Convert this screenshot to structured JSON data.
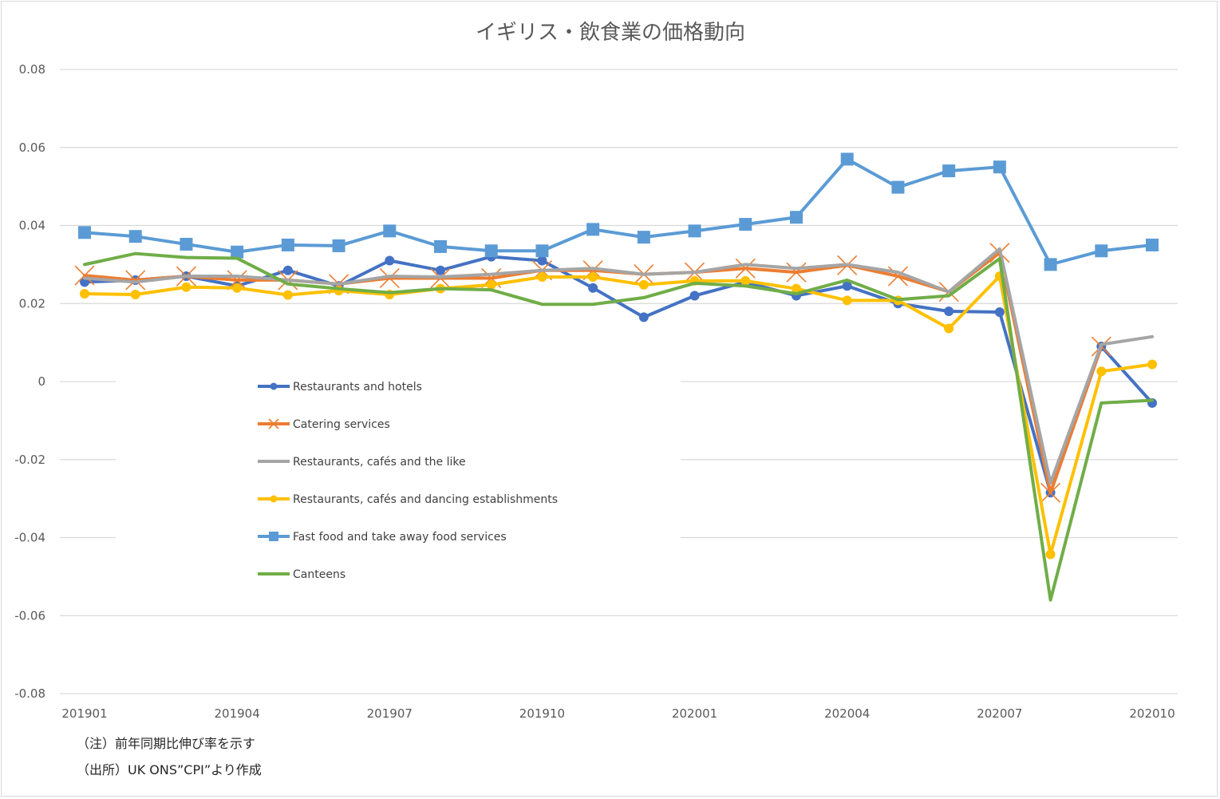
{
  "chart_data": {
    "type": "line",
    "title": "イギリス・飲食業の価格動向",
    "xlabel": "",
    "ylabel": "",
    "ylim": [
      -0.08,
      0.08
    ],
    "yticks": [
      0.08,
      0.06,
      0.04,
      0.02,
      0,
      -0.02,
      -0.04,
      -0.06,
      -0.08
    ],
    "ytick_labels": [
      "0.08",
      "0.06",
      "0.04",
      "0.02",
      "0",
      "-0.02",
      "-0.04",
      "-0.06",
      "-0.08"
    ],
    "x": [
      "201901",
      "201902",
      "201903",
      "201904",
      "201905",
      "201906",
      "201907",
      "201908",
      "201909",
      "201910",
      "201911",
      "201912",
      "202001",
      "202002",
      "202003",
      "202004",
      "202005",
      "202006",
      "202007",
      "202008",
      "202009",
      "202010"
    ],
    "xtick_labels": [
      "201901",
      "201904",
      "201907",
      "201910",
      "202001",
      "202004",
      "202007",
      "202010"
    ],
    "grid": true,
    "legend_position": "inside-left-center",
    "series": [
      {
        "name": "Restaurants and hotels",
        "color": "#4472c4",
        "marker": "circle",
        "values": [
          0.0255,
          0.026,
          0.027,
          0.0245,
          0.0285,
          0.0245,
          0.031,
          0.0285,
          0.032,
          0.031,
          0.024,
          0.0165,
          0.022,
          0.0255,
          0.022,
          0.0245,
          0.02,
          0.018,
          0.0178,
          -0.0285,
          0.009,
          -0.0055
        ]
      },
      {
        "name": "Catering services",
        "color": "#ed7d31",
        "marker": "x",
        "values": [
          0.0272,
          0.026,
          0.027,
          0.026,
          0.026,
          0.025,
          0.0265,
          0.0265,
          0.0265,
          0.0285,
          0.0285,
          0.0275,
          0.028,
          0.029,
          0.028,
          0.0298,
          0.027,
          0.023,
          0.033,
          -0.0285,
          0.009,
          null
        ]
      },
      {
        "name": "Restaurants, cafés and the like",
        "color": "#a5a5a5",
        "marker": "none",
        "values": [
          0.0265,
          0.0255,
          0.027,
          0.027,
          0.026,
          0.025,
          0.027,
          0.0268,
          0.0275,
          0.0285,
          0.029,
          0.0275,
          0.028,
          0.03,
          0.029,
          0.03,
          0.028,
          0.023,
          0.034,
          -0.026,
          0.0095,
          0.0115
        ]
      },
      {
        "name": "Restaurants, cafés and dancing establishments",
        "color": "#ffc000",
        "marker": "circle",
        "values": [
          0.0225,
          0.0223,
          0.0242,
          0.024,
          0.0222,
          0.0233,
          0.0223,
          0.0238,
          0.0248,
          0.0268,
          0.0268,
          0.0248,
          0.0258,
          0.0258,
          0.0238,
          0.0208,
          0.0208,
          0.0136,
          0.027,
          -0.0443,
          0.0026,
          0.0044
        ]
      },
      {
        "name": "Fast food and take away food services",
        "color": "#5b9bd5",
        "marker": "square",
        "values": [
          0.0382,
          0.0372,
          0.0352,
          0.0332,
          0.035,
          0.0348,
          0.0386,
          0.0346,
          0.0335,
          0.0335,
          0.039,
          0.037,
          0.0386,
          0.0403,
          0.0421,
          0.057,
          0.0498,
          0.054,
          0.055,
          0.03,
          0.0335,
          0.035
        ]
      },
      {
        "name": "Canteens",
        "color": "#70ad47",
        "marker": "none",
        "values": [
          0.03,
          0.0328,
          0.0318,
          0.0316,
          0.025,
          0.0238,
          0.0228,
          0.0238,
          0.0235,
          0.0198,
          0.0198,
          0.0215,
          0.0252,
          0.0245,
          0.0225,
          0.026,
          0.021,
          0.022,
          0.0315,
          -0.056,
          -0.0055,
          -0.0048
        ]
      }
    ]
  },
  "notes": {
    "note1": "（注）前年同期比伸び率を示す",
    "note2": "（出所）UK ONS”CPI”より作成"
  }
}
